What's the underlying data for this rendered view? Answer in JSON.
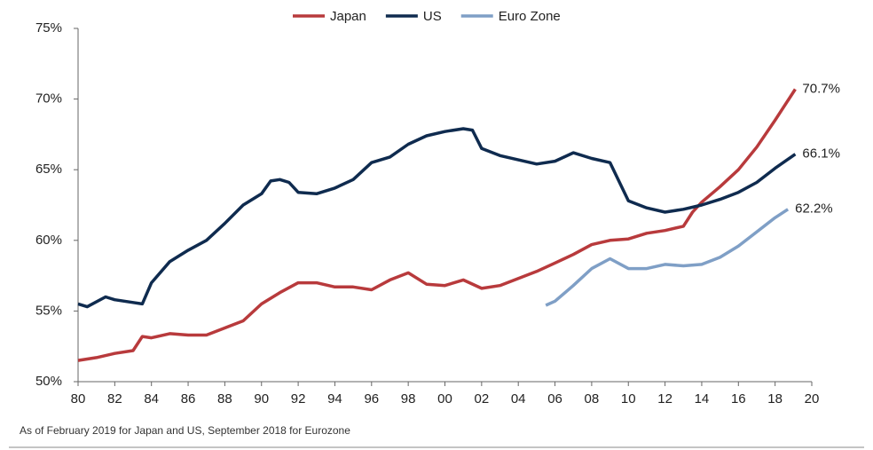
{
  "chart_data": {
    "type": "line",
    "ylim": [
      50,
      75
    ],
    "yticks": [
      {
        "value": 50,
        "label": "50%"
      },
      {
        "value": 55,
        "label": "55%"
      },
      {
        "value": 60,
        "label": "60%"
      },
      {
        "value": 65,
        "label": "65%"
      },
      {
        "value": 70,
        "label": "70%"
      },
      {
        "value": 75,
        "label": "75%"
      }
    ],
    "xlim": [
      1980,
      2020
    ],
    "xticks": [
      {
        "value": 1980,
        "label": "80"
      },
      {
        "value": 1982,
        "label": "82"
      },
      {
        "value": 1984,
        "label": "84"
      },
      {
        "value": 1986,
        "label": "86"
      },
      {
        "value": 1988,
        "label": "88"
      },
      {
        "value": 1990,
        "label": "90"
      },
      {
        "value": 1992,
        "label": "92"
      },
      {
        "value": 1994,
        "label": "94"
      },
      {
        "value": 1996,
        "label": "96"
      },
      {
        "value": 1998,
        "label": "98"
      },
      {
        "value": 2000,
        "label": "00"
      },
      {
        "value": 2002,
        "label": "02"
      },
      {
        "value": 2004,
        "label": "04"
      },
      {
        "value": 2006,
        "label": "06"
      },
      {
        "value": 2008,
        "label": "08"
      },
      {
        "value": 2010,
        "label": "10"
      },
      {
        "value": 2012,
        "label": "12"
      },
      {
        "value": 2014,
        "label": "14"
      },
      {
        "value": 2016,
        "label": "16"
      },
      {
        "value": 2018,
        "label": "18"
      },
      {
        "value": 2020,
        "label": "20"
      }
    ],
    "grid": false,
    "legend": "top",
    "footnote": "As of February 2019 for Japan and US, September 2018 for Eurozone",
    "series": [
      {
        "name": "Japan",
        "color": "#b83a3c",
        "x": [
          1980,
          1981,
          1982,
          1983,
          1983.5,
          1984,
          1985,
          1986,
          1987,
          1988,
          1989,
          1990,
          1991,
          1992,
          1993,
          1994,
          1995,
          1996,
          1997,
          1998,
          1999,
          2000,
          2001,
          2002,
          2003,
          2004,
          2005,
          2006,
          2007,
          2008,
          2009,
          2010,
          2011,
          2012,
          2013,
          2013.5,
          2014,
          2015,
          2016,
          2017,
          2018,
          2019.1
        ],
        "values": [
          51.5,
          51.7,
          52.0,
          52.2,
          53.2,
          53.1,
          53.4,
          53.3,
          53.3,
          53.8,
          54.3,
          55.5,
          56.3,
          57.0,
          57.0,
          56.7,
          56.7,
          56.5,
          57.2,
          57.7,
          56.9,
          56.8,
          57.2,
          56.6,
          56.8,
          57.3,
          57.8,
          58.4,
          59.0,
          59.7,
          60.0,
          60.1,
          60.5,
          60.7,
          61.0,
          62.0,
          62.7,
          63.8,
          65.0,
          66.6,
          68.5,
          70.7
        ],
        "value_labels": [
          null,
          null,
          null,
          null,
          null,
          null,
          null,
          null,
          null,
          null,
          null,
          null,
          null,
          null,
          null,
          null,
          null,
          null,
          null,
          null,
          null,
          null,
          null,
          null,
          null,
          null,
          null,
          null,
          null,
          null,
          null,
          null,
          null,
          null,
          null,
          null,
          null,
          null,
          null,
          null,
          null,
          "70.7%"
        ]
      },
      {
        "name": "US",
        "color": "#0f2b4f",
        "x": [
          1980,
          1980.5,
          1981.5,
          1982,
          1983,
          1983.5,
          1984,
          1985,
          1986,
          1987,
          1988,
          1989,
          1990,
          1990.5,
          1991,
          1991.5,
          1992,
          1993,
          1994,
          1995,
          1996,
          1997,
          1998,
          1999,
          2000,
          2001,
          2001.5,
          2002,
          2003,
          2004,
          2005,
          2006,
          2007,
          2008,
          2009,
          2010,
          2011,
          2012,
          2013,
          2014,
          2015,
          2016,
          2017,
          2018,
          2019.1
        ],
        "values": [
          55.5,
          55.3,
          56.0,
          55.8,
          55.6,
          55.5,
          57.0,
          58.5,
          59.3,
          60.0,
          61.2,
          62.5,
          63.3,
          64.2,
          64.3,
          64.1,
          63.4,
          63.3,
          63.7,
          64.3,
          65.5,
          65.9,
          66.8,
          67.4,
          67.7,
          67.9,
          67.8,
          66.5,
          66.0,
          65.7,
          65.4,
          65.6,
          66.2,
          65.8,
          65.5,
          62.8,
          62.3,
          62.0,
          62.2,
          62.5,
          62.9,
          63.4,
          64.1,
          65.1,
          66.1
        ],
        "value_labels": [
          null,
          null,
          null,
          null,
          null,
          null,
          null,
          null,
          null,
          null,
          null,
          null,
          null,
          null,
          null,
          null,
          null,
          null,
          null,
          null,
          null,
          null,
          null,
          null,
          null,
          null,
          null,
          null,
          null,
          null,
          null,
          null,
          null,
          null,
          null,
          null,
          null,
          null,
          null,
          null,
          null,
          null,
          null,
          null,
          "66.1%"
        ]
      },
      {
        "name": "Euro Zone",
        "color": "#7f9fc6",
        "x": [
          2005.5,
          2006,
          2007,
          2008,
          2009,
          2010,
          2011,
          2012,
          2013,
          2014,
          2015,
          2016,
          2017,
          2018,
          2018.7
        ],
        "values": [
          55.4,
          55.7,
          56.8,
          58.0,
          58.7,
          58.0,
          58.0,
          58.3,
          58.2,
          58.3,
          58.8,
          59.6,
          60.6,
          61.6,
          62.2
        ],
        "value_labels": [
          null,
          null,
          null,
          null,
          null,
          null,
          null,
          null,
          null,
          null,
          null,
          null,
          null,
          null,
          "62.2%"
        ]
      }
    ]
  }
}
